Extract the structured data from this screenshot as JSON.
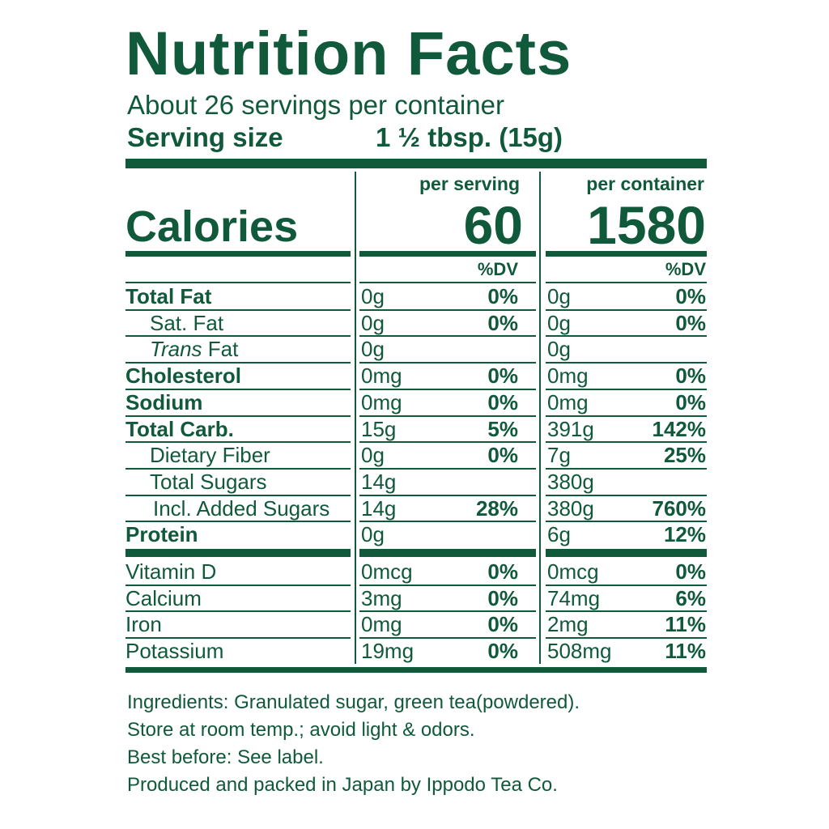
{
  "title": "Nutrition Facts",
  "servings_per_container": "About 26 servings per container",
  "serving_size": {
    "label": "Serving size",
    "value": "1 ½ tbsp. (15g)"
  },
  "columns": {
    "per_serving": "per serving",
    "per_container": "per container",
    "dv": "%DV"
  },
  "calories": {
    "label": "Calories",
    "per_serving": "60",
    "per_container": "1580"
  },
  "nutrients": [
    {
      "label": "Total Fat",
      "bold": true,
      "indent": 0,
      "serving_amt": "0g",
      "serving_dv": "0%",
      "container_amt": "0g",
      "container_dv": "0%"
    },
    {
      "label": "Sat. Fat",
      "bold": false,
      "indent": 1,
      "serving_amt": "0g",
      "serving_dv": "0%",
      "container_amt": "0g",
      "container_dv": "0%"
    },
    {
      "label": "Trans Fat",
      "bold": false,
      "indent": 1,
      "italic_prefix": "Trans",
      "serving_amt": "0g",
      "serving_dv": "",
      "container_amt": "0g",
      "container_dv": ""
    },
    {
      "label": "Cholesterol",
      "bold": true,
      "indent": 0,
      "serving_amt": "0mg",
      "serving_dv": "0%",
      "container_amt": "0mg",
      "container_dv": "0%"
    },
    {
      "label": "Sodium",
      "bold": true,
      "indent": 0,
      "serving_amt": "0mg",
      "serving_dv": "0%",
      "container_amt": "0mg",
      "container_dv": "0%"
    },
    {
      "label": "Total Carb.",
      "bold": true,
      "indent": 0,
      "serving_amt": "15g",
      "serving_dv": "5%",
      "container_amt": "391g",
      "container_dv": "142%"
    },
    {
      "label": "Dietary Fiber",
      "bold": false,
      "indent": 1,
      "serving_amt": "0g",
      "serving_dv": "0%",
      "container_amt": "7g",
      "container_dv": "25%"
    },
    {
      "label": "Total Sugars",
      "bold": false,
      "indent": 1,
      "serving_amt": "14g",
      "serving_dv": "",
      "container_amt": "380g",
      "container_dv": ""
    },
    {
      "label": "Incl. Added Sugars",
      "bold": false,
      "indent": 2,
      "serving_amt": "14g",
      "serving_dv": "28%",
      "container_amt": "380g",
      "container_dv": "760%"
    },
    {
      "label": "Protein",
      "bold": true,
      "indent": 0,
      "serving_amt": "0g",
      "serving_dv": "",
      "container_amt": "6g",
      "container_dv": "12%"
    }
  ],
  "vitamins": [
    {
      "label": "Vitamin D",
      "serving_amt": "0mcg",
      "serving_dv": "0%",
      "container_amt": "0mcg",
      "container_dv": "0%"
    },
    {
      "label": "Calcium",
      "serving_amt": "3mg",
      "serving_dv": "0%",
      "container_amt": "74mg",
      "container_dv": "6%"
    },
    {
      "label": "Iron",
      "serving_amt": "0mg",
      "serving_dv": "0%",
      "container_amt": "2mg",
      "container_dv": "11%"
    },
    {
      "label": "Potassium",
      "serving_amt": "19mg",
      "serving_dv": "0%",
      "container_amt": "508mg",
      "container_dv": "11%"
    }
  ],
  "footer": [
    "Ingredients: Granulated sugar, green tea(powdered).",
    "Store at room temp.; avoid light & odors.",
    "Best before: See label.",
    "Produced and packed in Japan by Ippodo Tea Co."
  ],
  "colors": {
    "ink": "#10593b",
    "background": "#ffffff"
  }
}
